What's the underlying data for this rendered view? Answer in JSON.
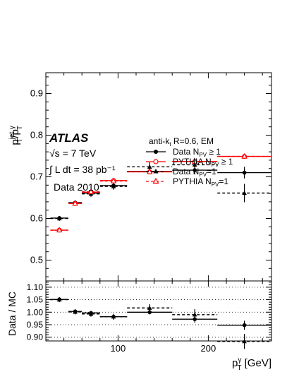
{
  "chart_data": [
    {
      "type": "scatter",
      "panel": "main",
      "ylabel": "p_T^jet / p_T^γ",
      "xlim": [
        20,
        270
      ],
      "ylim": [
        0.45,
        0.95
      ],
      "yticks": [
        0.5,
        0.6,
        0.7,
        0.8,
        0.9
      ],
      "ytick_labels": [
        "0.5",
        "0.6",
        "0.7",
        "0.8",
        "0.9"
      ],
      "experiment": "ATLAS",
      "annotations": [
        "√s = 7 TeV",
        "∫ L dt = 38 pb⁻¹",
        "Data 2010"
      ],
      "legend_title": "anti-k_t R=0.6, EM",
      "legend_placement": "top-right",
      "series": [
        {
          "name": "Data N_PV ≥ 1",
          "marker": "filled-circle",
          "line": "solid",
          "color": "#000000",
          "x": [
            35,
            52.5,
            70,
            95,
            135,
            185,
            240
          ],
          "x_lo": [
            25,
            45,
            60,
            80,
            110,
            160,
            210
          ],
          "x_hi": [
            45,
            60,
            80,
            110,
            160,
            210,
            270
          ],
          "y": [
            0.601,
            0.638,
            0.661,
            0.679,
            0.713,
            0.716,
            0.71
          ],
          "yerr": [
            0.004,
            0.004,
            0.004,
            0.005,
            0.006,
            0.01,
            0.014
          ]
        },
        {
          "name": "PYTHIA N_PV ≥ 1",
          "marker": "open-circle",
          "line": "solid",
          "color": "#ff0000",
          "x": [
            35,
            52.5,
            70,
            95,
            135,
            185,
            240
          ],
          "x_lo": [
            25,
            45,
            60,
            80,
            110,
            160,
            210
          ],
          "x_hi": [
            45,
            60,
            80,
            110,
            160,
            210,
            270
          ],
          "y": [
            0.572,
            0.636,
            0.663,
            0.691,
            0.712,
            0.737,
            0.749
          ],
          "yerr": [
            0.002,
            0.002,
            0.002,
            0.002,
            0.002,
            0.003,
            0.003
          ]
        },
        {
          "name": "Data N_PV = 1",
          "marker": "filled-triangle",
          "line": "dashed",
          "color": "#000000",
          "x": [
            35,
            52.5,
            70,
            95,
            135,
            185,
            240
          ],
          "x_lo": [
            25,
            45,
            60,
            80,
            110,
            160,
            210
          ],
          "x_hi": [
            45,
            60,
            80,
            110,
            160,
            210,
            270
          ],
          "y": [
            0.6,
            0.637,
            0.659,
            0.677,
            0.724,
            0.729,
            0.661
          ],
          "yerr": [
            0.006,
            0.006,
            0.007,
            0.008,
            0.011,
            0.016,
            0.022
          ]
        },
        {
          "name": "PYTHIA N_PV = 1",
          "marker": "open-triangle",
          "line": "dashed",
          "color": "#ff0000",
          "x": [
            35,
            52.5,
            70,
            95,
            135,
            185,
            240
          ],
          "x_lo": [
            25,
            45,
            60,
            80,
            110,
            160,
            210
          ],
          "x_hi": [
            45,
            60,
            80,
            110,
            160,
            210,
            270
          ],
          "y": [
            0.572,
            0.636,
            0.664,
            0.69,
            0.712,
            0.737,
            0.749
          ],
          "yerr": [
            0.002,
            0.002,
            0.002,
            0.002,
            0.002,
            0.003,
            0.003
          ]
        }
      ]
    },
    {
      "type": "scatter",
      "panel": "ratio",
      "ylabel": "Data / MC",
      "xlabel": "p_T^γ [GeV]",
      "xlim": [
        20,
        270
      ],
      "ylim": [
        0.885,
        1.125
      ],
      "xticks": [
        100,
        200
      ],
      "xtick_labels": [
        "100",
        "200"
      ],
      "yticks": [
        0.9,
        0.95,
        1.0,
        1.05,
        1.1
      ],
      "ytick_labels": [
        "0.90",
        "0.95",
        "1.00",
        "1.05",
        "1.10"
      ],
      "grid": "dotted horizontal at y ticks",
      "series": [
        {
          "name": "N_PV ≥ 1",
          "marker": "filled-circle",
          "line": "solid",
          "color": "#000000",
          "x": [
            35,
            52.5,
            70,
            95,
            135,
            185,
            240
          ],
          "x_lo": [
            25,
            45,
            60,
            80,
            110,
            160,
            210
          ],
          "x_hi": [
            45,
            60,
            80,
            110,
            160,
            210,
            270
          ],
          "y": [
            1.051,
            1.003,
            0.997,
            0.982,
            1.0,
            0.972,
            0.948
          ],
          "yerr": [
            0.008,
            0.007,
            0.006,
            0.007,
            0.009,
            0.014,
            0.018
          ]
        },
        {
          "name": "N_PV = 1",
          "marker": "filled-triangle",
          "line": "dashed",
          "color": "#000000",
          "x": [
            35,
            52.5,
            70,
            95,
            135,
            185,
            240
          ],
          "x_lo": [
            25,
            45,
            60,
            80,
            110,
            160,
            210
          ],
          "x_hi": [
            45,
            60,
            80,
            110,
            160,
            210,
            270
          ],
          "y": [
            1.05,
            1.001,
            0.993,
            0.982,
            1.017,
            0.99,
            0.883
          ],
          "yerr": [
            0.01,
            0.01,
            0.011,
            0.012,
            0.015,
            0.022,
            0.03
          ]
        }
      ]
    }
  ]
}
